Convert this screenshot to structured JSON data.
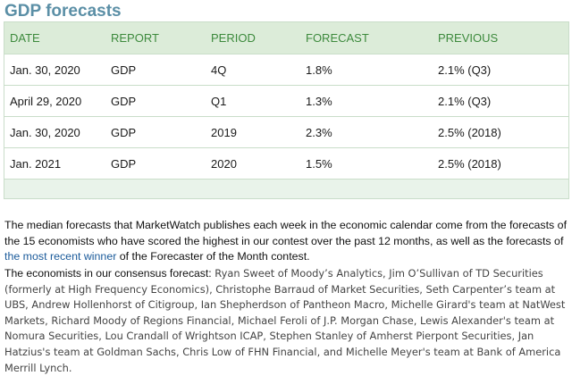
{
  "heading": "GDP forecasts",
  "table": {
    "columns": [
      "DATE",
      "REPORT",
      "PERIOD",
      "FORECAST",
      "PREVIOUS"
    ],
    "rows": [
      [
        "Jan. 30, 2020",
        "GDP",
        "4Q",
        "1.8%",
        "2.1% (Q3)"
      ],
      [
        "April 29, 2020",
        "GDP",
        "Q1",
        "1.3%",
        "2.1% (Q3)"
      ],
      [
        "Jan. 30, 2020",
        "GDP",
        "2019",
        "2.3%",
        "2.5% (2018)"
      ],
      [
        "Jan. 2021",
        "GDP",
        "2020",
        "1.5%",
        "2.5% (2018)"
      ]
    ]
  },
  "intro": {
    "text_before": "The median forecasts that MarketWatch publishes each week in the economic calendar come from the forecasts of the 15 economists who have scored the highest in our contest over the past 12 months, as well as the forecasts of ",
    "link": "the most recent winner",
    "text_after": " of the Forecaster of the Month contest."
  },
  "economists": {
    "label": "The economists in our consensus forecast:",
    "names": " Ryan Sweet of Moody’s Analytics, Jim O’Sullivan of TD Securities (formerly at High Frequency Economics), Christophe Barraud of Market Securities, Seth Carpenter’s team at UBS, Andrew Hollenhorst of Citigroup, Ian Shepherdson of Pantheon Macro, Michelle Girard's team at NatWest Markets, Richard Moody of Regions Financial, Michael Feroli of J.P. Morgan Chase, Lewis Alexander's team at Nomura Securities, Lou Crandall of Wrightson ICAP, Stephen Stanley of Amherst Pierpont Securities, Jan Hatzius's team at Goldman Sachs, Chris Low of FHN Financial, and Michelle Meyer's team at Bank of America Merrill Lynch."
  },
  "colors": {
    "heading": "#5b8fa6",
    "header_text": "#3d8a3d",
    "table_bg": "#e9f3ea",
    "link": "#1a5a9a"
  }
}
